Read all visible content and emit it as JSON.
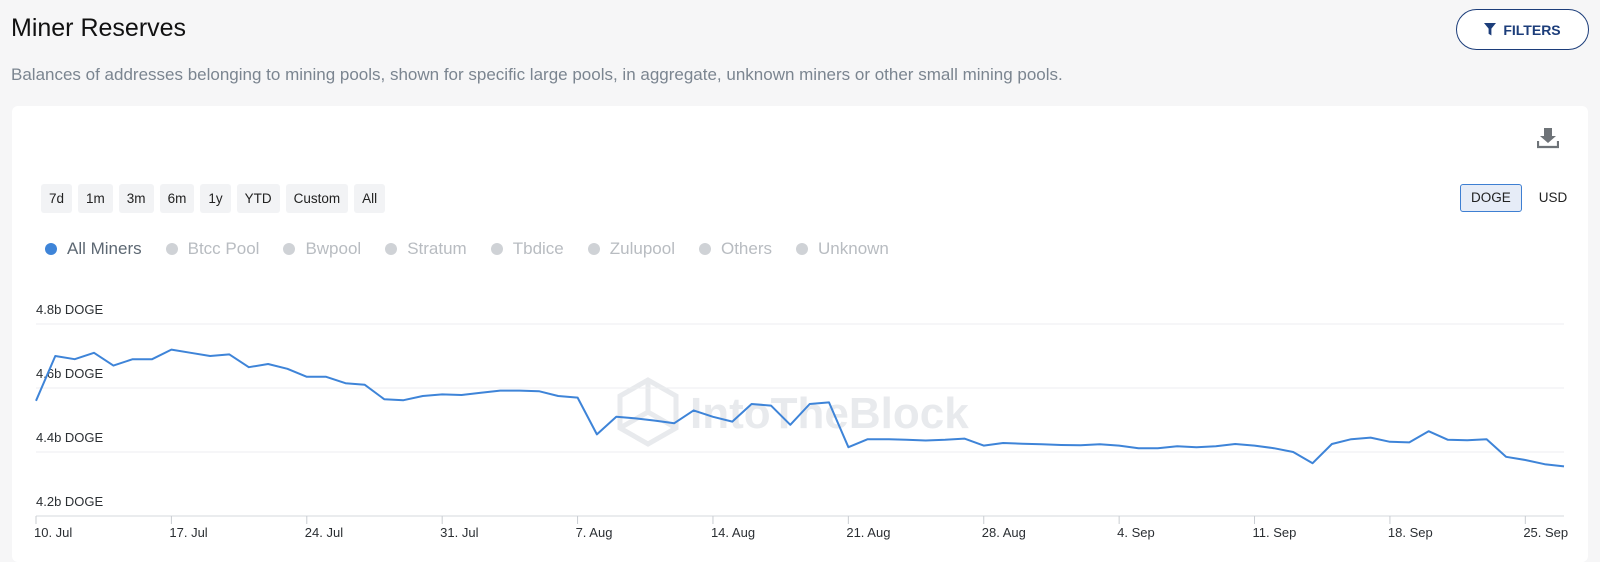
{
  "header": {
    "title": "Miner Reserves",
    "subtitle": "Balances of addresses belonging to mining pools, shown for specific large pools, in aggregate, unknown miners or other small mining pools.",
    "filters_label": "FILTERS",
    "filters_icon": "filter-icon"
  },
  "toolbar": {
    "download_icon": "download-icon",
    "ranges": [
      "7d",
      "1m",
      "3m",
      "6m",
      "1y",
      "YTD",
      "Custom",
      "All"
    ],
    "currencies": [
      "DOGE",
      "USD"
    ],
    "active_currency": "DOGE"
  },
  "legend": {
    "items": [
      "All Miners",
      "Btcc Pool",
      "Bwpool",
      "Stratum",
      "Tbdice",
      "Zulupool",
      "Others",
      "Unknown"
    ],
    "active": "All Miners"
  },
  "watermark": "IntoTheBlock",
  "colors": {
    "series": "#3e84d8",
    "accent": "#1c3d7a",
    "grid": "#eceef0"
  },
  "chart_data": {
    "type": "line",
    "title": "Miner Reserves",
    "y_unit": "DOGE",
    "ylim": [
      4.2,
      4.8
    ],
    "y_ticks": [
      4.2,
      4.4,
      4.6,
      4.8
    ],
    "y_tick_labels": [
      "4.2b DOGE",
      "4.4b DOGE",
      "4.6b DOGE",
      "4.8b DOGE"
    ],
    "x_tick_labels": [
      "10. Jul",
      "17. Jul",
      "24. Jul",
      "31. Jul",
      "7. Aug",
      "14. Aug",
      "21. Aug",
      "28. Aug",
      "4. Sep",
      "11. Sep",
      "18. Sep",
      "25. Sep"
    ],
    "x_start": "10. Jul",
    "x_end": "28. Sep",
    "grid": true,
    "legend_position": "top-left",
    "series": [
      {
        "name": "All Miners",
        "values": [
          4.56,
          4.7,
          4.69,
          4.71,
          4.67,
          4.69,
          4.69,
          4.72,
          4.71,
          4.7,
          4.705,
          4.665,
          4.675,
          4.66,
          4.635,
          4.635,
          4.615,
          4.61,
          4.565,
          4.562,
          4.575,
          4.58,
          4.578,
          4.585,
          4.592,
          4.592,
          4.59,
          4.575,
          4.57,
          4.455,
          4.51,
          4.505,
          4.498,
          4.49,
          4.53,
          4.51,
          4.495,
          4.55,
          4.545,
          4.485,
          4.55,
          4.555,
          4.415,
          4.44,
          4.44,
          4.438,
          4.436,
          4.438,
          4.442,
          4.42,
          4.428,
          4.426,
          4.424,
          4.422,
          4.421,
          4.424,
          4.42,
          4.412,
          4.412,
          4.418,
          4.415,
          4.418,
          4.425,
          4.42,
          4.412,
          4.4,
          4.365,
          4.425,
          4.44,
          4.445,
          4.432,
          4.43,
          4.465,
          4.438,
          4.437,
          4.44,
          4.385,
          4.375,
          4.362,
          4.355
        ]
      }
    ]
  }
}
